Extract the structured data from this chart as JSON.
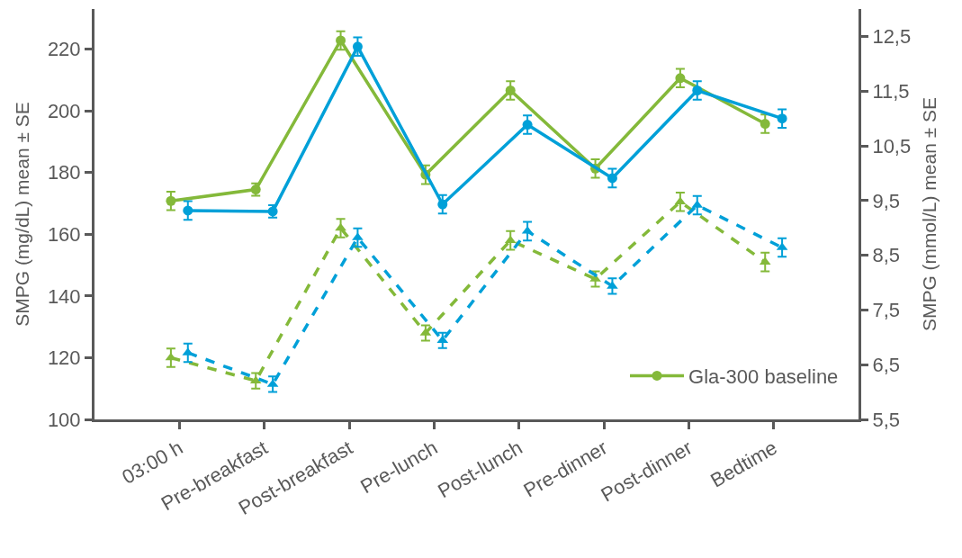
{
  "chart_data": {
    "type": "line",
    "xlabel": null,
    "ylabel": "SMPG (mg/dL) mean ± SE",
    "y2label": "SMPG (mmol/L) mean ± SE",
    "categories": [
      "03:00 h",
      "Pre-breakfast",
      "Post-breakfast",
      "Pre-lunch",
      "Post-lunch",
      "Pre-dinner",
      "Post-dinner",
      "Bedtime"
    ],
    "series": [
      {
        "name": "Gla-300 baseline",
        "color": "#84b93a",
        "marker": "circle",
        "line_style": "solid",
        "values": [
          170.8,
          174.5,
          222.8,
          179.3,
          206.6,
          181.3,
          210.6,
          195.8
        ],
        "errors": [
          3,
          2,
          3,
          3,
          3,
          3,
          3,
          3
        ]
      },
      {
        "color": "#00a0d8",
        "marker": "circle",
        "line_style": "solid",
        "values": [
          167.7,
          167.4,
          220.8,
          169.7,
          195.5,
          178.2,
          206.6,
          197.5
        ],
        "errors": [
          3,
          2,
          3,
          3,
          3,
          3,
          3,
          3
        ]
      },
      {
        "color": "#84b93a",
        "marker": "triangle",
        "line_style": "dashed",
        "values": [
          120.0,
          112.5,
          162.0,
          128.0,
          158.0,
          145.5,
          170.5,
          151.0
        ],
        "errors": [
          3,
          2.5,
          3,
          2.5,
          3,
          2.5,
          3,
          3
        ]
      },
      {
        "color": "#00a0d8",
        "marker": "triangle",
        "line_style": "dashed",
        "values": [
          121.6,
          111.4,
          158.9,
          125.6,
          161.0,
          143.2,
          169.4,
          155.7
        ],
        "errors": [
          3,
          2.5,
          3,
          2.5,
          3,
          2.5,
          3,
          3
        ]
      }
    ],
    "ylim": [
      100,
      233
    ],
    "yticks": [
      100,
      120,
      140,
      160,
      180,
      200,
      220
    ],
    "y2lim": [
      5.5,
      13.0
    ],
    "y2ticks": [
      {
        "value": 5.5,
        "label": "5,5"
      },
      {
        "value": 6.5,
        "label": "6,5"
      },
      {
        "value": 7.5,
        "label": "7,5"
      },
      {
        "value": 8.5,
        "label": "8,5"
      },
      {
        "value": 9.5,
        "label": "9,5"
      },
      {
        "value": 10.5,
        "label": "10,5"
      },
      {
        "value": 11.5,
        "label": "11,5"
      },
      {
        "value": 12.5,
        "label": "12,5"
      }
    ],
    "legend": "bottom right"
  }
}
